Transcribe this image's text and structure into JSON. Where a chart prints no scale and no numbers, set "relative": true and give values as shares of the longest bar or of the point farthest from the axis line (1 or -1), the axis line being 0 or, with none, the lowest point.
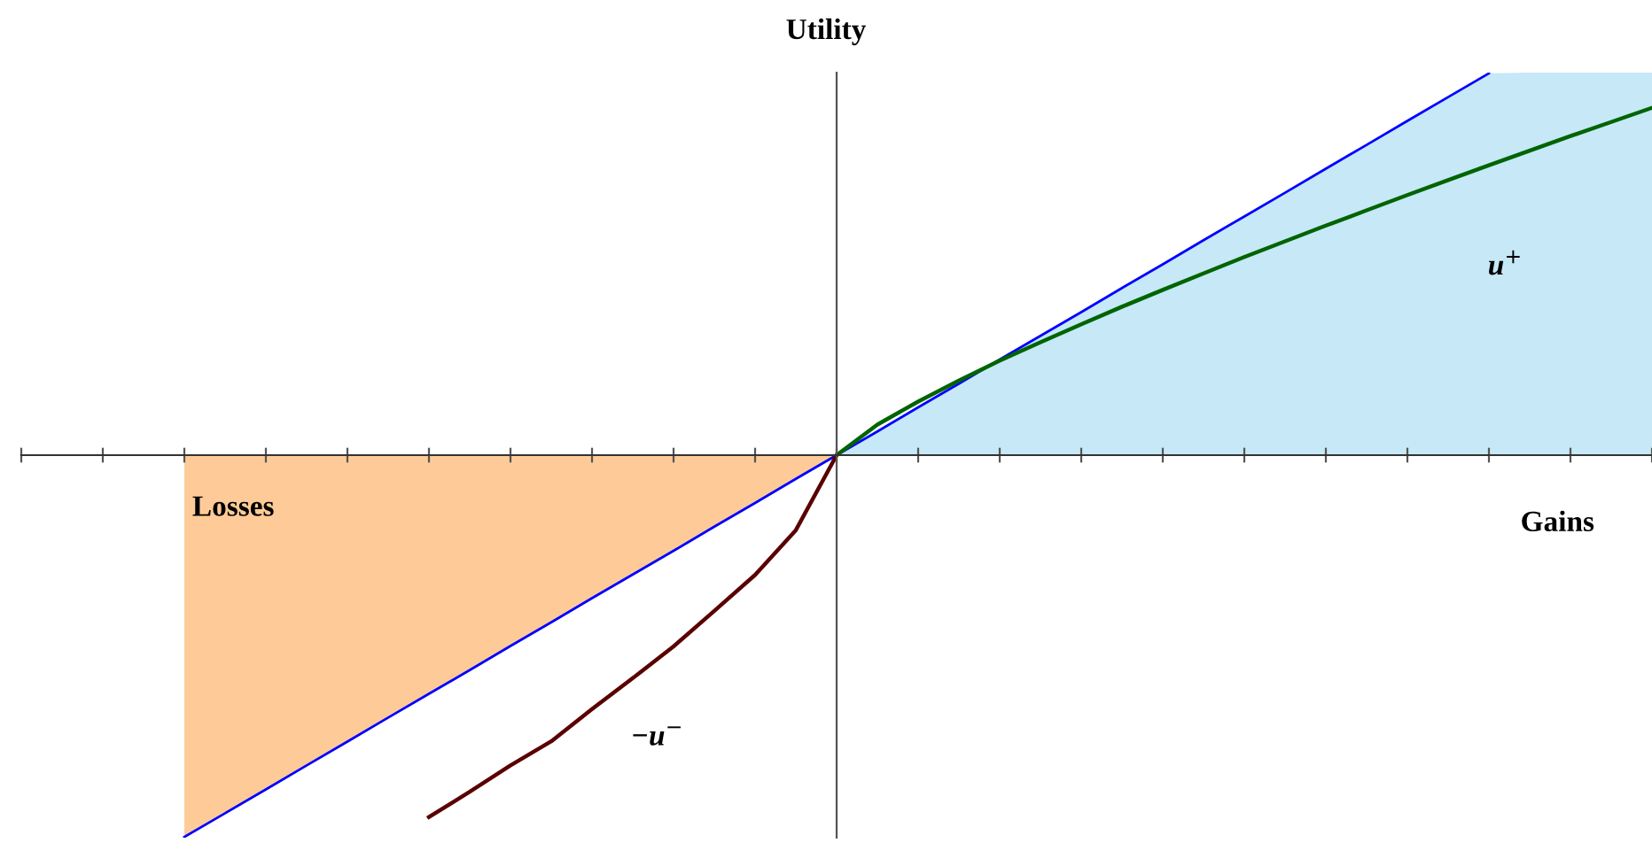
{
  "chart_data": {
    "type": "line",
    "title": "Utility",
    "relative": true,
    "grid": false,
    "legend": false,
    "categories": [
      null,
      null,
      null,
      null,
      null,
      null,
      null,
      null,
      null,
      null,
      null,
      null,
      null,
      null,
      null,
      null,
      null,
      null,
      null,
      null,
      null,
      null,
      null,
      null,
      null,
      null,
      null,
      null,
      null,
      null,
      null,
      null,
      null,
      null,
      null,
      null,
      null,
      null,
      null,
      null,
      null
    ],
    "series": [
      {
        "type": "area",
        "color": "#c6e8f7",
        "values": [
          null,
          null,
          null,
          null,
          null,
          null,
          null,
          null,
          null,
          null,
          null,
          null,
          null,
          null,
          null,
          null,
          null,
          null,
          null,
          null,
          0,
          0.062,
          0.125,
          0.187,
          0.25,
          0.312,
          0.374,
          0.437,
          0.499,
          0.562,
          0.624,
          0.686,
          0.749,
          0.811,
          0.874,
          0.936,
          0.998,
          1,
          1,
          1,
          1
        ]
      },
      {
        "type": "area",
        "color": "#fecb98",
        "values": [
          null,
          null,
          null,
          null,
          -0.998,
          -0.936,
          -0.874,
          -0.811,
          -0.749,
          -0.686,
          -0.624,
          -0.562,
          -0.499,
          -0.437,
          -0.374,
          -0.312,
          -0.25,
          -0.187,
          -0.125,
          -0.062,
          0,
          null,
          null,
          null,
          null,
          null,
          null,
          null,
          null,
          null,
          null,
          null,
          null,
          null,
          null,
          null,
          null,
          null,
          null,
          null,
          null
        ]
      },
      {
        "color": "#0000ff",
        "values": [
          null,
          null,
          null,
          null,
          -0.998,
          -0.936,
          -0.874,
          -0.811,
          -0.749,
          -0.686,
          -0.624,
          -0.562,
          -0.499,
          -0.437,
          -0.374,
          -0.312,
          -0.25,
          -0.187,
          -0.125,
          -0.062,
          0,
          0.062,
          0.125,
          0.187,
          0.25,
          0.312,
          0.374,
          0.437,
          0.499,
          0.562,
          0.624,
          0.686,
          0.749,
          0.811,
          0.874,
          0.936,
          0.998,
          null,
          null,
          null,
          null
        ]
      },
      {
        "color": "#006400",
        "values": [
          null,
          null,
          null,
          null,
          null,
          null,
          null,
          null,
          null,
          null,
          null,
          null,
          null,
          null,
          null,
          null,
          null,
          null,
          null,
          null,
          0,
          0.08,
          0.14,
          0.195,
          0.247,
          0.295,
          0.342,
          0.388,
          0.432,
          0.475,
          0.518,
          0.559,
          0.6,
          0.64,
          0.68,
          0.719,
          0.758,
          0.796,
          0.834,
          0.871,
          0.908
        ]
      },
      {
        "color": "#5a0000",
        "values": [
          null,
          null,
          null,
          null,
          null,
          null,
          null,
          null,
          null,
          null,
          -0.946,
          -0.88,
          -0.811,
          -0.748,
          -0.664,
          -0.583,
          -0.5,
          -0.407,
          -0.313,
          -0.196,
          0,
          null,
          null,
          null,
          null,
          null,
          null,
          null,
          null,
          null,
          null,
          null,
          null,
          null,
          null,
          null,
          null,
          null,
          null,
          null,
          null
        ]
      }
    ],
    "annotations": [
      "Losses",
      "Gains",
      "u$^{+}$",
      "−u$^{−}$"
    ]
  }
}
